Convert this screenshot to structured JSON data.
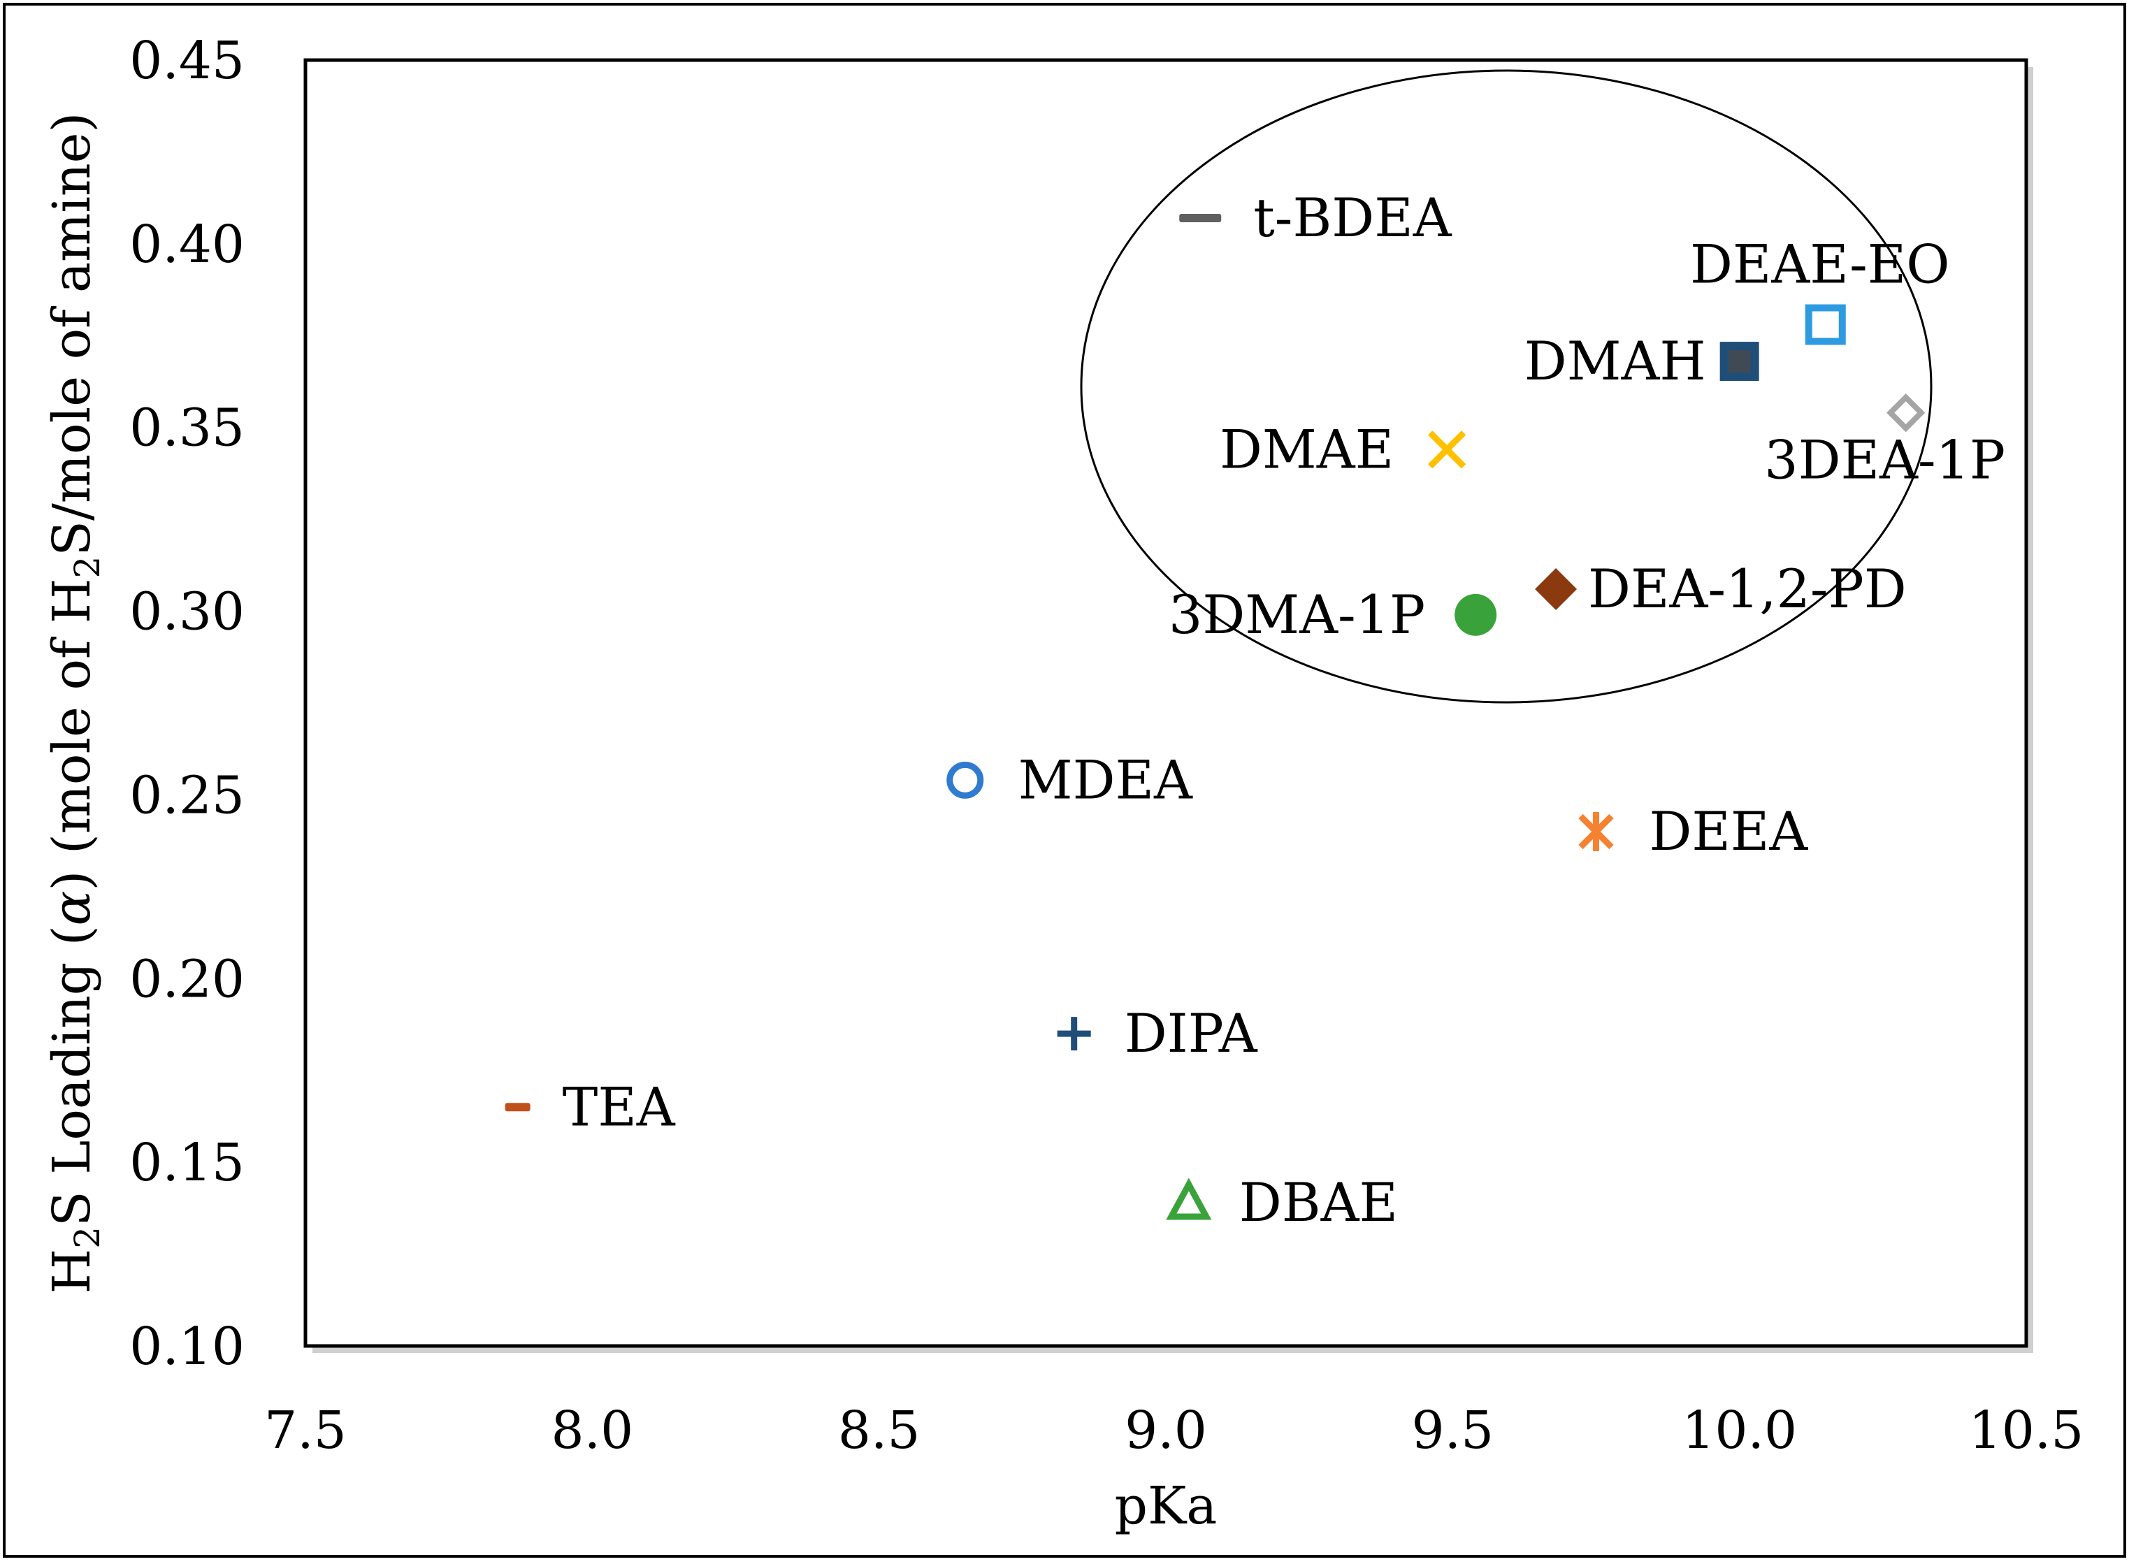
{
  "chart_data": {
    "type": "scatter",
    "title": "",
    "xlabel": "pKa",
    "ylabel": {
      "parts": [
        "H",
        "2",
        "S Loading (",
        "α",
        ") (mole of H",
        "2",
        "S/mole of amine)"
      ]
    },
    "xlim": [
      7.5,
      10.5
    ],
    "ylim": [
      0.1,
      0.45
    ],
    "x_ticks": [
      "7.5",
      "8.0",
      "8.5",
      "9.0",
      "9.5",
      "10.0",
      "10.5"
    ],
    "y_ticks": [
      "0.10",
      "0.15",
      "0.20",
      "0.25",
      "0.30",
      "0.35",
      "0.40",
      "0.45"
    ],
    "grid": false,
    "legend": "none (points labeled directly)",
    "annotations": [
      "ellipse enclosing the high-loading group of tertiary amines"
    ],
    "points": [
      {
        "name": "t-BDEA",
        "x": 9.06,
        "y": 0.407,
        "marker": "dash",
        "color": "#606060"
      },
      {
        "name": "DEAE-EO",
        "x": 10.15,
        "y": 0.378,
        "marker": "square-open",
        "color": "#2e9be0"
      },
      {
        "name": "DMAH",
        "x": 10.0,
        "y": 0.368,
        "marker": "square-filled",
        "color": "#1f4e79"
      },
      {
        "name": "3DEA-1P",
        "x": 10.29,
        "y": 0.354,
        "marker": "diamond-open",
        "color": "#a5a5a5"
      },
      {
        "name": "DMAE",
        "x": 9.49,
        "y": 0.344,
        "marker": "x",
        "color": "#ffc000"
      },
      {
        "name": "DEA-1,2-PD",
        "x": 9.68,
        "y": 0.306,
        "marker": "diamond-filled",
        "color": "#8b3a0f"
      },
      {
        "name": "3DMA-1P",
        "x": 9.54,
        "y": 0.299,
        "marker": "circle-filled",
        "color": "#3aa23a"
      },
      {
        "name": "MDEA",
        "x": 8.65,
        "y": 0.254,
        "marker": "circle-open",
        "color": "#2f7bd0"
      },
      {
        "name": "DEEA",
        "x": 9.75,
        "y": 0.24,
        "marker": "asterisk",
        "color": "#f58231"
      },
      {
        "name": "DIPA",
        "x": 8.84,
        "y": 0.185,
        "marker": "plus",
        "color": "#1f4e79"
      },
      {
        "name": "TEA",
        "x": 7.87,
        "y": 0.165,
        "marker": "dash",
        "color": "#c0501c"
      },
      {
        "name": "DBAE",
        "x": 9.04,
        "y": 0.139,
        "marker": "triangle-open",
        "color": "#3aa23a"
      }
    ]
  }
}
